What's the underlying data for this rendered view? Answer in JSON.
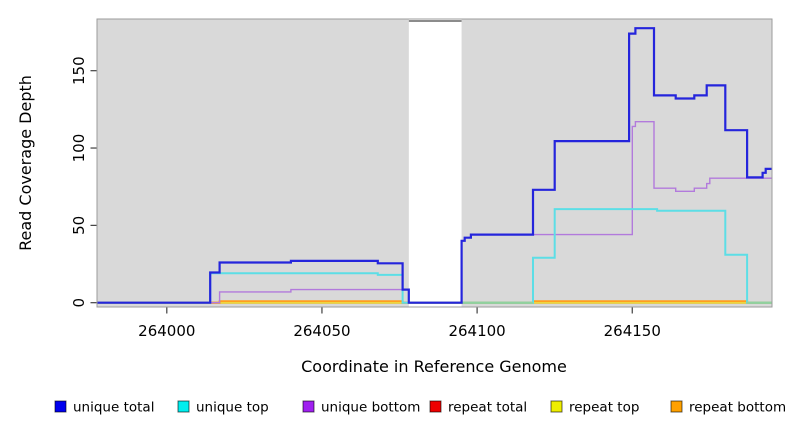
{
  "figure": {
    "xlabel": "Coordinate in Reference Genome",
    "ylabel": "Read Coverage Depth"
  },
  "chart_data": {
    "type": "line",
    "subtype": "step-after",
    "title": "",
    "xlabel": "Coordinate in Reference Genome",
    "ylabel": "Read Coverage Depth",
    "xlim": [
      263977,
      264195
    ],
    "ylim": [
      0,
      183
    ],
    "xticks": [
      264000,
      264050,
      264100,
      264150
    ],
    "yticks": [
      0,
      50,
      100,
      150
    ],
    "grid": false,
    "legend_position": "bottom",
    "panel_background": "#d9d9d9",
    "masked_region": {
      "x_start": 264078,
      "x_end": 264095,
      "color": "#ffffff",
      "top_edge_color": "#8c8c8c"
    },
    "series": [
      {
        "name": "unique total",
        "swatch_color": "#0000EE",
        "line_color": "#2525DC",
        "width": 2.2,
        "z": 7,
        "steps": [
          [
            263977,
            0
          ],
          [
            264014,
            19.5
          ],
          [
            264017,
            26
          ],
          [
            264040,
            27
          ],
          [
            264068,
            25.5
          ],
          [
            264076,
            8.5
          ],
          [
            264078,
            0
          ],
          [
            264095,
            40
          ],
          [
            264096,
            42
          ],
          [
            264098,
            44
          ],
          [
            264118,
            73
          ],
          [
            264125,
            104.5
          ],
          [
            264149,
            174
          ],
          [
            264151,
            177.5
          ],
          [
            264157,
            134
          ],
          [
            264164,
            132
          ],
          [
            264170,
            134
          ],
          [
            264174,
            140.5
          ],
          [
            264180,
            111.5
          ],
          [
            264187,
            81
          ],
          [
            264192,
            84
          ],
          [
            264193,
            86.5
          ]
        ],
        "end": 264195
      },
      {
        "name": "unique top",
        "swatch_color": "#00EEEE",
        "line_color": "#5CDEE6",
        "width": 2.0,
        "z": 5,
        "steps": [
          [
            263977,
            0
          ],
          [
            264014,
            19
          ],
          [
            264068,
            18
          ],
          [
            264076,
            0
          ],
          [
            264118,
            29
          ],
          [
            264125,
            60.5
          ],
          [
            264158,
            59.5
          ],
          [
            264180,
            31
          ],
          [
            264187,
            0
          ]
        ],
        "end": 264195
      },
      {
        "name": "unique bottom",
        "swatch_color": "#A020F0",
        "line_color": "#B27ADC",
        "width": 1.4,
        "z": 4,
        "steps": [
          [
            263977,
            0
          ],
          [
            264017,
            7
          ],
          [
            264040,
            8.5
          ],
          [
            264078,
            0
          ],
          [
            264095,
            40
          ],
          [
            264096,
            42
          ],
          [
            264098,
            44
          ],
          [
            264150,
            114
          ],
          [
            264151,
            117
          ],
          [
            264157,
            74
          ],
          [
            264164,
            72
          ],
          [
            264170,
            74
          ],
          [
            264174,
            77
          ],
          [
            264175,
            80.5
          ]
        ],
        "end": 264195
      },
      {
        "name": "repeat total",
        "swatch_color": "#EE0000",
        "line_color": "#DD2222",
        "width": 2.0,
        "z": 1,
        "steps": [
          [
            263977,
            0
          ]
        ],
        "end": 264195
      },
      {
        "name": "repeat top",
        "swatch_color": "#EEEE00",
        "line_color": "#E8E84A",
        "width": 2.0,
        "z": 2,
        "steps": [
          [
            263977,
            0
          ]
        ],
        "end": 264195
      },
      {
        "name": "repeat bottom",
        "swatch_color": "#FFA000",
        "line_color": "#FF9E1E",
        "width": 2.0,
        "z": 3,
        "steps": [
          [
            263977,
            0
          ],
          [
            264017,
            1
          ],
          [
            264076,
            0
          ],
          [
            264118,
            1
          ],
          [
            264187,
            0
          ]
        ],
        "end": 264195
      }
    ],
    "overlap_zero_segments": {
      "color": "#8FD2A0",
      "width": 2,
      "z": 6,
      "value": 0,
      "segments": [
        [
          264095,
          264118
        ],
        [
          264187,
          264195
        ]
      ]
    }
  },
  "legend": {
    "items": [
      {
        "label": "unique total",
        "color": "#0000EE"
      },
      {
        "label": "unique top",
        "color": "#00EEEE"
      },
      {
        "label": "unique bottom",
        "color": "#A020F0"
      },
      {
        "label": "repeat total",
        "color": "#EE0000"
      },
      {
        "label": "repeat top",
        "color": "#EEEE00"
      },
      {
        "label": "repeat bottom",
        "color": "#FFA000"
      }
    ]
  }
}
